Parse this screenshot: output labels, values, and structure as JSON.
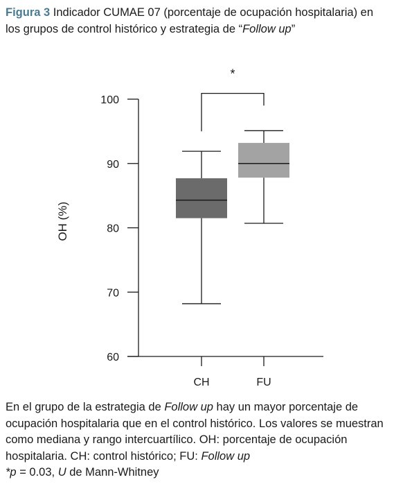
{
  "figure": {
    "label": "Figura 3",
    "title_before": " Indicador CUMAE 07 (porcentaje de ocupación hospitalaria) en los grupos de control histórico y estrategia de “",
    "title_italic": "Follow up",
    "title_after": "”"
  },
  "chart_data": {
    "type": "boxplot",
    "ylabel": "OH (%)",
    "ylim": [
      60,
      100
    ],
    "yticks": [
      "60",
      "70",
      "80",
      "90",
      "100"
    ],
    "categories": [
      "CH",
      "FU"
    ],
    "boxes": [
      {
        "category": "CH",
        "min": 68.2,
        "q1": 81.5,
        "median": 84.3,
        "q3": 87.7,
        "max": 91.9,
        "color": "#6b6b6b"
      },
      {
        "category": "FU",
        "min": 80.7,
        "q1": 87.8,
        "median": 90.0,
        "q3": 93.2,
        "max": 95.1,
        "color": "#a3a3a3"
      }
    ],
    "significance": {
      "label": "*",
      "bracket_top": 100.9,
      "bracket_left_end": 95.0,
      "bracket_right_end": 99.0
    }
  },
  "note": {
    "line1_before": "En el grupo de la estrategia de ",
    "line1_italic": "Follow up",
    "line1_after": " hay un mayor porcentaje de ocupación hospitalaria que en el control histórico. Los valores se muestran como mediana y rango intercuartílico. OH: porcentaje de ocupación hospitalaria. CH: control histórico; FU: ",
    "line1_italic2": "Follow up",
    "line2_italic_p": "*p",
    "line2_mid": " = 0.03, ",
    "line2_italic_u": "U",
    "line2_after": " de Mann-Whitney"
  }
}
